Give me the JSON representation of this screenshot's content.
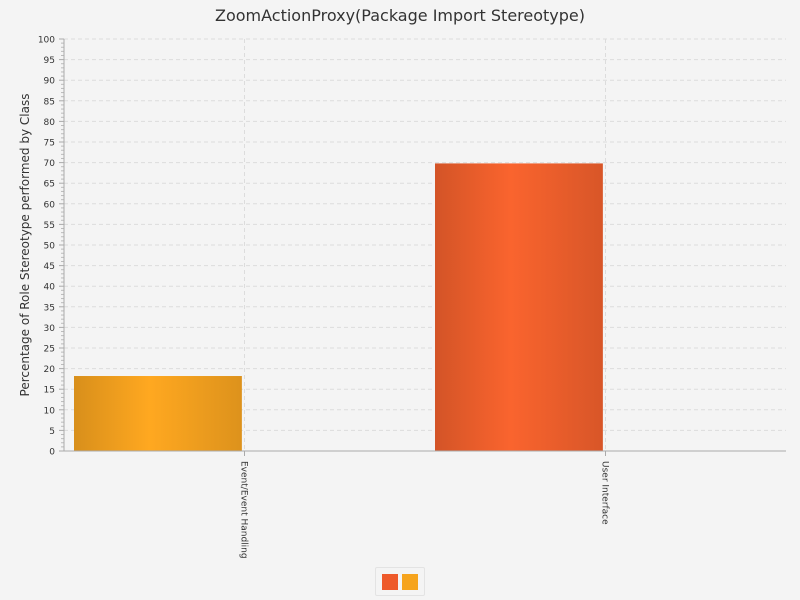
{
  "chart_data": {
    "type": "bar",
    "title": "ZoomActionProxy(Package Import Stereotype)",
    "xlabel": "",
    "ylabel": "Percentage of Role Stereotype performed by Class",
    "categories": [
      "Event/Event Handling",
      "User Interface"
    ],
    "values": [
      18.2,
      69.8
    ],
    "bar_colors": [
      "#f5a21f",
      "#f0602c"
    ],
    "ylim": [
      0,
      100
    ],
    "y_tick_step": 5,
    "grid": true,
    "legend": {
      "placement": "bottom",
      "swatch_colors": [
        "#ee5a2a",
        "#f6a41d"
      ]
    }
  }
}
